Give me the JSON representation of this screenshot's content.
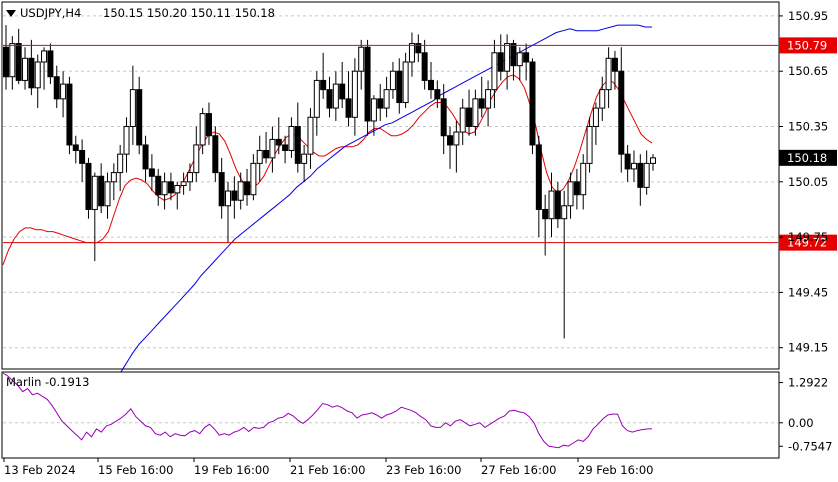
{
  "header": {
    "symbol": "USDJPY,H4",
    "ohlc": "150.15 150.20 150.11 150.18"
  },
  "chart_data": {
    "type": "candlestick",
    "symbol": "USDJPY",
    "timeframe": "H4",
    "price_axis": {
      "ticks": [
        "150.95",
        "150.65",
        "150.35",
        "150.05",
        "149.75",
        "149.45",
        "149.15"
      ],
      "tick_values": [
        150.95,
        150.65,
        150.35,
        150.05,
        149.75,
        149.45,
        149.15
      ],
      "ylim": [
        149.04,
        151.02
      ]
    },
    "time_axis": [
      "13 Feb 2024",
      "15 Feb 16:00",
      "19 Feb 16:00",
      "21 Feb 16:00",
      "23 Feb 16:00",
      "27 Feb 16:00",
      "29 Feb 16:00"
    ],
    "horizontal_lines": [
      {
        "value": 150.79,
        "label": "150.79",
        "color": "#e60000"
      },
      {
        "value": 149.72,
        "label": "149.72",
        "color": "#e60000"
      }
    ],
    "current_price": {
      "value": 150.18,
      "label": "150.18"
    },
    "candles": [
      [
        150.78,
        150.9,
        150.55,
        150.62
      ],
      [
        150.62,
        150.84,
        150.55,
        150.8
      ],
      [
        150.8,
        150.88,
        150.58,
        150.6
      ],
      [
        150.6,
        150.78,
        150.55,
        150.72
      ],
      [
        150.72,
        150.82,
        150.52,
        150.56
      ],
      [
        150.56,
        150.74,
        150.45,
        150.7
      ],
      [
        150.7,
        150.78,
        150.55,
        150.76
      ],
      [
        150.76,
        150.8,
        150.58,
        150.62
      ],
      [
        150.62,
        150.68,
        150.45,
        150.5
      ],
      [
        150.5,
        150.65,
        150.4,
        150.58
      ],
      [
        150.58,
        150.62,
        150.2,
        150.25
      ],
      [
        150.25,
        150.3,
        150.15,
        150.22
      ],
      [
        150.22,
        150.28,
        150.05,
        150.15
      ],
      [
        150.15,
        150.18,
        149.85,
        149.9
      ],
      [
        149.9,
        150.1,
        149.62,
        150.08
      ],
      [
        150.08,
        150.15,
        149.88,
        149.92
      ],
      [
        149.92,
        150.1,
        149.85,
        150.05
      ],
      [
        150.05,
        150.15,
        149.95,
        150.1
      ],
      [
        150.1,
        150.25,
        150.0,
        150.2
      ],
      [
        150.2,
        150.4,
        150.1,
        150.35
      ],
      [
        150.35,
        150.68,
        150.25,
        150.55
      ],
      [
        150.55,
        150.62,
        150.2,
        150.25
      ],
      [
        150.25,
        150.3,
        150.05,
        150.12
      ],
      [
        150.12,
        150.2,
        150.0,
        150.08
      ],
      [
        150.08,
        150.12,
        149.92,
        149.98
      ],
      [
        149.98,
        150.1,
        149.9,
        150.05
      ],
      [
        150.05,
        150.1,
        149.95,
        149.99
      ],
      [
        149.99,
        150.05,
        149.9,
        150.03
      ],
      [
        150.03,
        150.1,
        149.98,
        150.05
      ],
      [
        150.05,
        150.15,
        150.0,
        150.1
      ],
      [
        150.1,
        150.35,
        150.05,
        150.25
      ],
      [
        150.25,
        150.45,
        150.2,
        150.42
      ],
      [
        150.42,
        150.48,
        150.25,
        150.3
      ],
      [
        150.3,
        150.35,
        150.05,
        150.1
      ],
      [
        150.1,
        150.18,
        149.85,
        149.92
      ],
      [
        149.92,
        150.05,
        149.72,
        150.0
      ],
      [
        150.0,
        150.08,
        149.85,
        149.95
      ],
      [
        149.95,
        150.1,
        149.9,
        150.05
      ],
      [
        150.05,
        150.12,
        149.92,
        149.98
      ],
      [
        149.98,
        150.2,
        149.95,
        150.15
      ],
      [
        150.15,
        150.3,
        150.05,
        150.22
      ],
      [
        150.22,
        150.32,
        150.15,
        150.18
      ],
      [
        150.18,
        150.35,
        150.1,
        150.28
      ],
      [
        150.28,
        150.4,
        150.2,
        150.25
      ],
      [
        150.25,
        150.3,
        150.15,
        150.22
      ],
      [
        150.22,
        150.4,
        150.18,
        150.35
      ],
      [
        150.35,
        150.48,
        150.1,
        150.15
      ],
      [
        150.15,
        150.25,
        150.05,
        150.2
      ],
      [
        150.2,
        150.45,
        150.12,
        150.4
      ],
      [
        150.4,
        150.65,
        150.3,
        150.6
      ],
      [
        150.6,
        150.75,
        150.5,
        150.55
      ],
      [
        150.55,
        150.62,
        150.4,
        150.45
      ],
      [
        150.45,
        150.65,
        150.38,
        150.58
      ],
      [
        150.58,
        150.7,
        150.45,
        150.5
      ],
      [
        150.5,
        150.65,
        150.35,
        150.4
      ],
      [
        150.4,
        150.72,
        150.3,
        150.65
      ],
      [
        150.65,
        150.82,
        150.55,
        150.78
      ],
      [
        150.78,
        150.82,
        150.3,
        150.38
      ],
      [
        150.38,
        150.52,
        150.3,
        150.5
      ],
      [
        150.5,
        150.58,
        150.38,
        150.45
      ],
      [
        150.45,
        150.62,
        150.4,
        150.55
      ],
      [
        150.55,
        150.7,
        150.5,
        150.65
      ],
      [
        150.65,
        150.72,
        150.42,
        150.48
      ],
      [
        150.48,
        150.75,
        150.45,
        150.7
      ],
      [
        150.7,
        150.86,
        150.62,
        150.8
      ],
      [
        150.8,
        150.85,
        150.7,
        150.75
      ],
      [
        150.75,
        150.82,
        150.55,
        150.6
      ],
      [
        150.6,
        150.7,
        150.5,
        150.55
      ],
      [
        150.55,
        150.6,
        150.45,
        150.5
      ],
      [
        150.5,
        150.58,
        150.2,
        150.3
      ],
      [
        150.3,
        150.35,
        150.12,
        150.25
      ],
      [
        150.25,
        150.38,
        150.1,
        150.32
      ],
      [
        150.32,
        150.5,
        150.25,
        150.45
      ],
      [
        150.45,
        150.55,
        150.3,
        150.35
      ],
      [
        150.35,
        150.55,
        150.3,
        150.5
      ],
      [
        150.5,
        150.62,
        150.4,
        150.45
      ],
      [
        150.45,
        150.6,
        150.35,
        150.55
      ],
      [
        150.55,
        150.82,
        150.45,
        150.75
      ],
      [
        150.75,
        150.85,
        150.6,
        150.65
      ],
      [
        150.65,
        150.85,
        150.55,
        150.8
      ],
      [
        150.8,
        150.82,
        150.6,
        150.68
      ],
      [
        150.68,
        150.78,
        150.6,
        150.75
      ],
      [
        150.75,
        150.8,
        150.6,
        150.7
      ],
      [
        150.7,
        150.72,
        150.2,
        150.25
      ],
      [
        150.25,
        150.3,
        149.75,
        149.9
      ],
      [
        149.9,
        149.98,
        149.65,
        149.85
      ],
      [
        149.85,
        150.1,
        149.75,
        150.0
      ],
      [
        150.0,
        150.05,
        149.8,
        149.85
      ],
      [
        149.85,
        150.0,
        149.2,
        149.92
      ],
      [
        149.92,
        150.1,
        149.85,
        150.05
      ],
      [
        150.05,
        150.12,
        149.9,
        149.98
      ],
      [
        149.98,
        150.2,
        149.9,
        150.15
      ],
      [
        150.15,
        150.4,
        150.1,
        150.35
      ],
      [
        150.35,
        150.48,
        150.25,
        150.45
      ],
      [
        150.45,
        150.62,
        150.38,
        150.55
      ],
      [
        150.55,
        150.78,
        150.45,
        150.72
      ],
      [
        150.72,
        150.76,
        150.55,
        150.65
      ],
      [
        150.65,
        150.78,
        150.1,
        150.2
      ],
      [
        150.2,
        150.25,
        150.05,
        150.12
      ],
      [
        150.12,
        150.22,
        150.05,
        150.15
      ],
      [
        150.15,
        150.2,
        149.92,
        150.02
      ],
      [
        150.02,
        150.22,
        149.98,
        150.15
      ],
      [
        150.15,
        150.2,
        150.11,
        150.18
      ]
    ],
    "moving_averages": [
      {
        "color": "#e60000",
        "values": [
          149.6,
          149.68,
          149.74,
          149.78,
          149.8,
          149.8,
          149.79,
          149.79,
          149.78,
          149.78,
          149.77,
          149.76,
          149.75,
          149.74,
          149.73,
          149.72,
          149.72,
          149.72,
          149.74,
          149.78,
          149.87,
          149.96,
          150.03,
          150.06,
          150.07,
          150.06,
          150.04,
          150.0,
          149.97,
          149.95,
          149.96,
          149.98,
          150.02,
          150.08,
          150.14,
          150.2,
          150.26,
          150.3,
          150.32,
          150.31,
          150.27,
          150.2,
          150.12,
          150.06,
          150.03,
          150.02,
          150.04,
          150.08,
          150.14,
          150.2,
          150.25,
          150.29,
          150.31,
          150.3,
          150.27,
          150.24,
          150.21,
          150.19,
          150.19,
          150.21,
          150.23,
          150.24,
          150.24,
          150.24,
          150.25,
          150.28,
          150.32,
          150.34,
          150.34,
          150.32,
          150.3,
          150.3,
          150.31,
          150.33,
          150.36,
          150.4,
          150.43,
          150.46,
          150.48,
          150.48,
          150.46,
          150.42,
          150.37,
          150.33,
          150.31,
          150.32,
          150.37,
          150.43,
          150.5,
          150.55,
          150.59,
          150.62,
          150.63,
          150.61,
          150.56,
          150.47,
          150.36,
          150.22,
          150.1,
          150.02,
          149.99,
          150.01,
          150.06,
          150.13,
          150.22,
          150.32,
          150.42,
          150.51,
          150.57,
          150.6,
          150.59,
          150.55,
          150.49,
          150.43,
          150.37,
          150.31,
          150.28,
          150.26
        ]
      },
      {
        "color": "#0000e6",
        "values": [
          148.94,
          149.0,
          149.06,
          149.12,
          149.17,
          149.21,
          149.25,
          149.29,
          149.33,
          149.37,
          149.41,
          149.45,
          149.49,
          149.54,
          149.58,
          149.62,
          149.66,
          149.7,
          149.74,
          149.77,
          149.8,
          149.83,
          149.86,
          149.89,
          149.92,
          149.95,
          149.98,
          150.02,
          150.05,
          150.08,
          150.12,
          150.15,
          150.18,
          150.21,
          150.24,
          150.26,
          150.28,
          150.3,
          150.32,
          150.34,
          150.36,
          150.37,
          150.39,
          150.41,
          150.43,
          150.45,
          150.47,
          150.49,
          150.52,
          150.54,
          150.56,
          150.58,
          150.6,
          150.62,
          150.64,
          150.66,
          150.68,
          150.7,
          150.72,
          150.74,
          150.76,
          150.78,
          150.8,
          150.82,
          150.84,
          150.86,
          150.87,
          150.88,
          150.87,
          150.87,
          150.87,
          150.87,
          150.88,
          150.89,
          150.9,
          150.9,
          150.9,
          150.9,
          150.89,
          150.89
        ]
      }
    ],
    "indicator": {
      "name": "Marlin",
      "label": "Marlin -0.1913",
      "value": -0.1913,
      "ticks": [
        "1.2922",
        "0.00",
        "-0.7547"
      ],
      "tick_values": [
        1.2922,
        0.0,
        -0.7547
      ],
      "ylim": [
        -1.1,
        1.6
      ],
      "color": "#9900b8",
      "values": [
        1.6,
        1.5,
        1.35,
        1.2,
        1.0,
        1.1,
        0.9,
        0.95,
        0.85,
        0.75,
        0.55,
        0.3,
        0.05,
        -0.1,
        -0.25,
        -0.4,
        -0.55,
        -0.3,
        -0.45,
        -0.2,
        -0.3,
        -0.1,
        -0.05,
        0.05,
        0.15,
        0.28,
        0.45,
        0.2,
        0.05,
        -0.1,
        -0.15,
        -0.35,
        -0.4,
        -0.3,
        -0.45,
        -0.35,
        -0.4,
        -0.42,
        -0.3,
        -0.25,
        -0.35,
        -0.15,
        -0.05,
        -0.2,
        -0.4,
        -0.35,
        -0.4,
        -0.3,
        -0.25,
        -0.15,
        -0.28,
        -0.15,
        -0.18,
        -0.15,
        0.0,
        0.05,
        0.15,
        0.18,
        0.3,
        0.22,
        0.08,
        -0.02,
        0.1,
        0.25,
        0.42,
        0.62,
        0.58,
        0.5,
        0.55,
        0.48,
        0.38,
        0.32,
        0.15,
        0.25,
        0.28,
        0.32,
        0.25,
        0.15,
        0.25,
        0.3,
        0.38,
        0.5,
        0.45,
        0.4,
        0.32,
        0.2,
        0.1,
        -0.1,
        -0.15,
        -0.15,
        0.0,
        -0.1,
        0.05,
        0.1,
        0.0,
        -0.1,
        -0.05,
        0.0,
        -0.15,
        -0.05,
        0.05,
        0.15,
        0.22,
        0.38,
        0.4,
        0.35,
        0.32,
        0.2,
        0.0,
        -0.35,
        -0.6,
        -0.75,
        -0.78,
        -0.8,
        -0.72,
        -0.75,
        -0.65,
        -0.55,
        -0.6,
        -0.45,
        -0.2,
        -0.05,
        0.12,
        0.25,
        0.28,
        0.28,
        -0.1,
        -0.25,
        -0.3,
        -0.25,
        -0.22,
        -0.2,
        -0.19
      ]
    }
  }
}
